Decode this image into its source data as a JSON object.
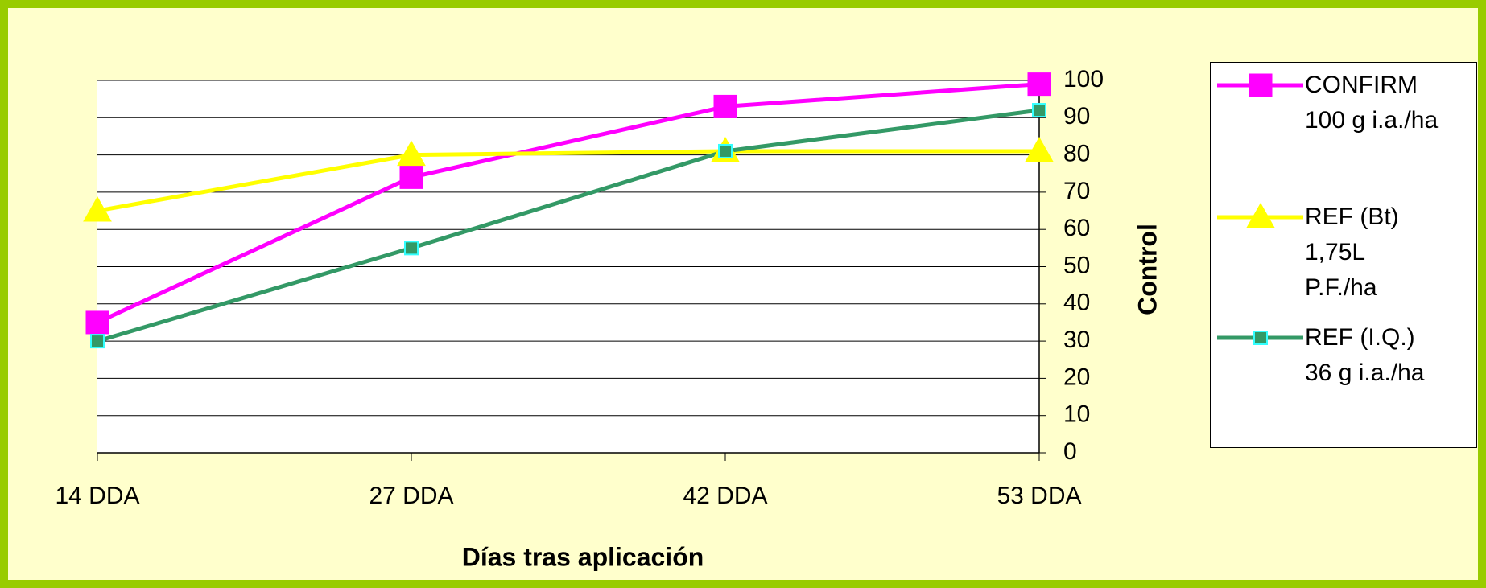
{
  "chart_data": {
    "type": "line",
    "x_label": "Días tras aplicación",
    "y_label": "Control",
    "categories": [
      "14 DDA",
      "27 DDA",
      "42 DDA",
      "53 DDA"
    ],
    "series": [
      {
        "name": "CONFIRM\n100 g i.a./ha",
        "color": "#ff00ff",
        "marker": "square",
        "values": [
          35,
          74,
          93,
          99
        ]
      },
      {
        "name": "REF (Bt)\n1,75L\nP.F./ha",
        "color": "#ffff00",
        "marker": "triangle",
        "values": [
          65,
          80,
          81,
          81
        ]
      },
      {
        "name": "REF (I.Q.)\n36 g i.a./ha",
        "color": "#339966",
        "marker": "small-square",
        "values": [
          30,
          55,
          81,
          92
        ]
      }
    ],
    "ylim": [
      0,
      100
    ],
    "yticks": [
      0,
      10,
      20,
      30,
      40,
      50,
      60,
      70,
      80,
      90,
      100
    ],
    "grid": true,
    "y_axis_side": "right",
    "legend": "right"
  }
}
